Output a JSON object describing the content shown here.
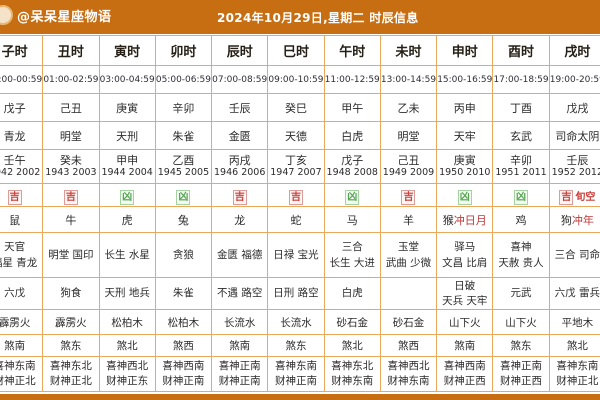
{
  "header": {
    "account": "@呆呆星座物语",
    "title": "2024年10月29日,星期二 时辰信息"
  },
  "colors": {
    "accent_orange": "#c86e12",
    "border_orange": "#e9a85c",
    "auspicious_red": "#c8413c",
    "inauspicious_green": "#53a34f"
  },
  "table": {
    "columns": [
      {
        "hour": "子时",
        "time": "23:00-00:59",
        "ganzhi": "戊子",
        "deity": "青龙",
        "year_gz": "壬午",
        "years": "1942 2002",
        "luck": "吉",
        "luck_type": "ji",
        "luck_extra": "",
        "zodiac": "鼠",
        "zodiac_warn": "",
        "ji_lines": [
          "天官",
          "福星 青龙"
        ],
        "xiong_lines": [
          "六戊"
        ],
        "nayin": "霹雳火",
        "sha": "煞南",
        "xishen": "喜神东南",
        "caishen": "财神正北"
      },
      {
        "hour": "丑时",
        "time": "01:00-02:59",
        "ganzhi": "己丑",
        "deity": "明堂",
        "year_gz": "癸未",
        "years": "1943 2003",
        "luck": "吉",
        "luck_type": "ji",
        "luck_extra": "",
        "zodiac": "牛",
        "zodiac_warn": "",
        "ji_lines": [
          "明堂 国印"
        ],
        "xiong_lines": [
          "狗食"
        ],
        "nayin": "霹雳火",
        "sha": "煞东",
        "xishen": "喜神东北",
        "caishen": "财神正北"
      },
      {
        "hour": "寅时",
        "time": "03:00-04:59",
        "ganzhi": "庚寅",
        "deity": "天刑",
        "year_gz": "甲申",
        "years": "1944 2004",
        "luck": "凶",
        "luck_type": "xiong",
        "luck_extra": "",
        "zodiac": "虎",
        "zodiac_warn": "",
        "ji_lines": [
          "长生 水星"
        ],
        "xiong_lines": [
          "天刑 地兵"
        ],
        "nayin": "松柏木",
        "sha": "煞北",
        "xishen": "喜神西北",
        "caishen": "财神正东"
      },
      {
        "hour": "卯时",
        "time": "05:00-06:59",
        "ganzhi": "辛卯",
        "deity": "朱雀",
        "year_gz": "乙酉",
        "years": "1945 2005",
        "luck": "凶",
        "luck_type": "xiong",
        "luck_extra": "",
        "zodiac": "兔",
        "zodiac_warn": "",
        "ji_lines": [
          "贪狼"
        ],
        "xiong_lines": [
          "朱雀"
        ],
        "nayin": "松柏木",
        "sha": "煞西",
        "xishen": "喜神西南",
        "caishen": "财神正南"
      },
      {
        "hour": "辰时",
        "time": "07:00-08:59",
        "ganzhi": "壬辰",
        "deity": "金匮",
        "year_gz": "丙戌",
        "years": "1946 2006",
        "luck": "吉",
        "luck_type": "ji",
        "luck_extra": "",
        "zodiac": "龙",
        "zodiac_warn": "",
        "ji_lines": [
          "金匮 福德"
        ],
        "xiong_lines": [
          "不遇 路空"
        ],
        "nayin": "长流水",
        "sha": "煞南",
        "xishen": "喜神正南",
        "caishen": "财神正南"
      },
      {
        "hour": "巳时",
        "time": "09:00-10:59",
        "ganzhi": "癸巳",
        "deity": "天德",
        "year_gz": "丁亥",
        "years": "1947 2007",
        "luck": "吉",
        "luck_type": "ji",
        "luck_extra": "",
        "zodiac": "蛇",
        "zodiac_warn": "",
        "ji_lines": [
          "日禄 宝光"
        ],
        "xiong_lines": [
          "日刑 路空"
        ],
        "nayin": "长流水",
        "sha": "煞东",
        "xishen": "喜神东南",
        "caishen": "财神正南"
      },
      {
        "hour": "午时",
        "time": "11:00-12:59",
        "ganzhi": "甲午",
        "deity": "白虎",
        "year_gz": "戊子",
        "years": "1948 2008",
        "luck": "凶",
        "luck_type": "xiong",
        "luck_extra": "",
        "zodiac": "马",
        "zodiac_warn": "",
        "ji_lines": [
          "三合",
          "长生 大进"
        ],
        "xiong_lines": [
          "白虎"
        ],
        "nayin": "砂石金",
        "sha": "煞北",
        "xishen": "喜神东北",
        "caishen": "财神东南"
      },
      {
        "hour": "未时",
        "time": "13:00-14:59",
        "ganzhi": "乙未",
        "deity": "明堂",
        "year_gz": "己丑",
        "years": "1949 2009",
        "luck": "吉",
        "luck_type": "ji",
        "luck_extra": "",
        "zodiac": "羊",
        "zodiac_warn": "",
        "ji_lines": [
          "玉堂",
          "武曲 少微"
        ],
        "xiong_lines": [],
        "nayin": "砂石金",
        "sha": "煞西",
        "xishen": "喜神西北",
        "caishen": "财神东南"
      },
      {
        "hour": "申时",
        "time": "15:00-16:59",
        "ganzhi": "丙申",
        "deity": "天牢",
        "year_gz": "庚寅",
        "years": "1950 2010",
        "luck": "凶",
        "luck_type": "xiong",
        "luck_extra": "",
        "zodiac": "猴",
        "zodiac_warn": "冲日月",
        "ji_lines": [
          "驿马",
          "文昌 比肩"
        ],
        "xiong_lines": [
          "日破",
          "天兵 天牢"
        ],
        "nayin": "山下火",
        "sha": "煞南",
        "xishen": "喜神西南",
        "caishen": "财神正西"
      },
      {
        "hour": "酉时",
        "time": "17:00-18:59",
        "ganzhi": "丁酉",
        "deity": "玄武",
        "year_gz": "辛卯",
        "years": "1951 2011",
        "luck": "凶",
        "luck_type": "xiong",
        "luck_extra": "",
        "zodiac": "鸡",
        "zodiac_warn": "",
        "ji_lines": [
          "喜神",
          "天赦 贵人"
        ],
        "xiong_lines": [
          "元武"
        ],
        "nayin": "山下火",
        "sha": "煞东",
        "xishen": "喜神正南",
        "caishen": "财神正西"
      },
      {
        "hour": "戌时",
        "time": "19:00-20:59",
        "ganzhi": "戊戌",
        "deity": "司命太阴",
        "year_gz": "壬辰",
        "years": "1952 2012",
        "luck": "吉",
        "luck_type": "ji",
        "luck_extra": "旬空",
        "zodiac": "狗",
        "zodiac_warn": "冲年",
        "ji_lines": [
          "三合 司命"
        ],
        "xiong_lines": [
          "六戊 雷兵"
        ],
        "nayin": "平地木",
        "sha": "煞北",
        "xishen": "喜神东南",
        "caishen": "财神正北"
      }
    ]
  }
}
